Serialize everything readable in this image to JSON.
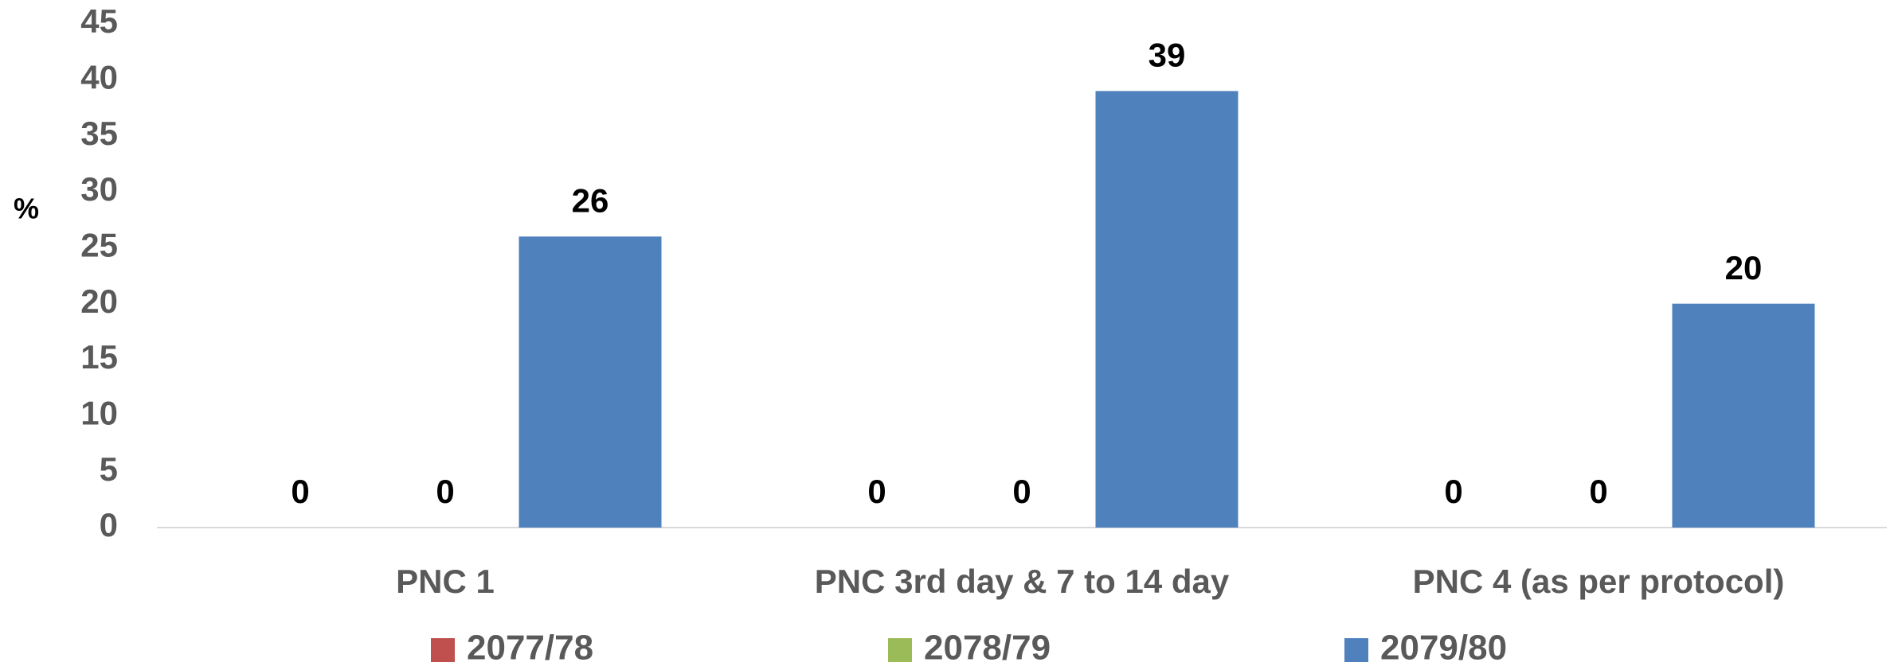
{
  "chart_data": {
    "type": "bar",
    "y_label": "%",
    "categories": [
      "PNC 1",
      "PNC 3rd day  & 7 to 14 day",
      "PNC 4 (as per protocol)"
    ],
    "series": [
      {
        "name": "2077/78",
        "color": "#c0504d",
        "values": [
          0,
          0,
          0
        ]
      },
      {
        "name": "2078/79",
        "color": "#9bbb59",
        "values": [
          0,
          0,
          0
        ]
      },
      {
        "name": "2079/80",
        "color": "#4f81bd",
        "values": [
          26,
          39,
          20
        ]
      }
    ],
    "ylim": [
      0,
      45
    ],
    "yticks": [
      0,
      5,
      10,
      15,
      20,
      25,
      30,
      35,
      40,
      45
    ],
    "grid": false,
    "legend": "bottom"
  }
}
